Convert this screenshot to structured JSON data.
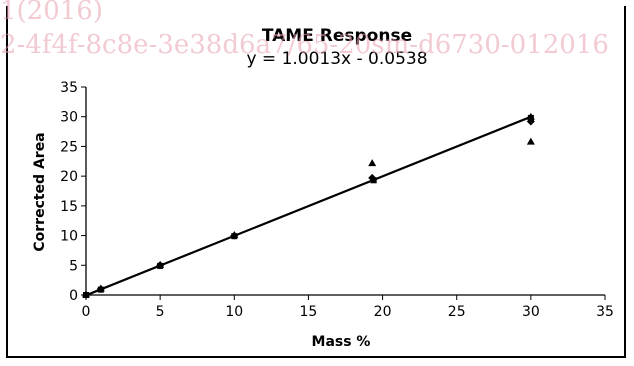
{
  "watermark": {
    "line1": "1(2016)",
    "line2": "2-4f4f-8c8e-3e38d6a7/65-20sm-d6730-012016"
  },
  "chart_data": {
    "type": "scatter",
    "title": "TAME Response",
    "subtitle": "y = 1.0013x - 0.0538",
    "xlabel": "Mass %",
    "ylabel": "Corrected Area",
    "xlim": [
      0,
      35
    ],
    "ylim": [
      0,
      35
    ],
    "xticks": [
      0,
      5,
      10,
      15,
      20,
      25,
      30,
      35
    ],
    "yticks": [
      0,
      5,
      10,
      15,
      20,
      25,
      30,
      35
    ],
    "grid": false,
    "trendline": {
      "slope": 1.0013,
      "intercept": -0.0538,
      "x_range": [
        0,
        30
      ]
    },
    "series": [
      {
        "marker": "diamond",
        "points": [
          [
            0,
            0
          ],
          [
            1,
            1
          ],
          [
            5,
            5
          ],
          [
            10,
            10
          ],
          [
            19.3,
            19.7
          ],
          [
            30,
            29.2
          ]
        ]
      },
      {
        "marker": "square",
        "points": [
          [
            0,
            0
          ],
          [
            1,
            0.9
          ],
          [
            5,
            4.9
          ],
          [
            10,
            9.9
          ],
          [
            19.4,
            19.3
          ],
          [
            30,
            29.8
          ]
        ]
      },
      {
        "marker": "triangle",
        "points": [
          [
            0,
            0.1
          ],
          [
            1,
            1.1
          ],
          [
            5,
            5.1
          ],
          [
            10,
            10.1
          ],
          [
            19.3,
            22.2
          ],
          [
            30,
            25.8
          ],
          [
            30,
            30
          ]
        ]
      }
    ]
  }
}
